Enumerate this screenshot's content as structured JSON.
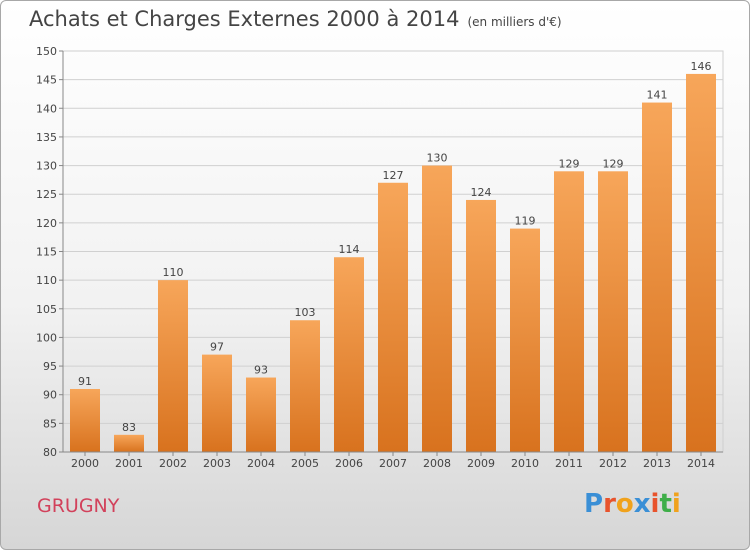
{
  "header": {
    "title": "Achats et Charges Externes 2000 à 2014",
    "unit": "(en milliers d'€)"
  },
  "footer": {
    "city": "GRUGNY",
    "logo": "Proxiti"
  },
  "colors": {
    "bar_light": "#f7a65a",
    "bar_dark": "#d8721e",
    "city": "#d2415b",
    "logo": [
      "#3a8fd6",
      "#e8532c",
      "#f0a21c",
      "#3a8fd6",
      "#e8532c",
      "#3fae49",
      "#f0a21c"
    ]
  },
  "chart_data": {
    "type": "bar",
    "title": "Achats et Charges Externes 2000 à 2014",
    "xlabel": "",
    "ylabel": "",
    "ylim": [
      80,
      150
    ],
    "yticks": [
      80,
      85,
      90,
      95,
      100,
      105,
      110,
      115,
      120,
      125,
      130,
      135,
      140,
      145,
      150
    ],
    "grid": true,
    "categories": [
      "2000",
      "2001",
      "2002",
      "2003",
      "2004",
      "2005",
      "2006",
      "2007",
      "2008",
      "2009",
      "2010",
      "2011",
      "2012",
      "2013",
      "2014"
    ],
    "values": [
      91,
      83,
      110,
      97,
      93,
      103,
      114,
      127,
      130,
      124,
      119,
      129,
      129,
      141,
      146
    ]
  }
}
